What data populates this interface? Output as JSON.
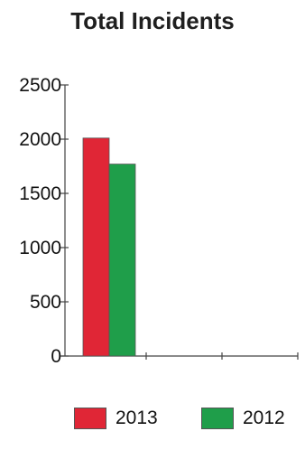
{
  "chart_data": {
    "type": "bar",
    "title": "Total Incidents",
    "categories": [
      ""
    ],
    "series": [
      {
        "name": "2013",
        "values": [
          2010
        ],
        "color": "#e02636"
      },
      {
        "name": "2012",
        "values": [
          1770
        ],
        "color": "#1f9e4a"
      }
    ],
    "ylim": [
      0,
      2500
    ],
    "yticks": [
      0,
      500,
      1000,
      1500,
      2000,
      2500
    ],
    "ytick_labels": [
      "0",
      "500",
      "1000",
      "1500",
      "2000",
      "2500"
    ],
    "grid": false,
    "legend_position": "bottom"
  }
}
